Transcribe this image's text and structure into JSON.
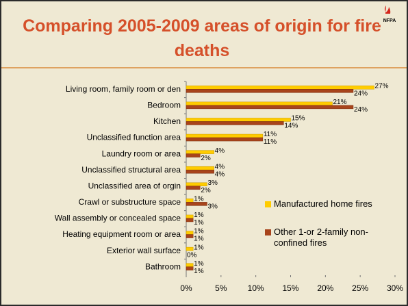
{
  "chart_data": {
    "type": "barh",
    "title": "Comparing 2005-2009 areas of origin for fire deaths",
    "logo": "NFPA",
    "categories": [
      "Living room, family room or den",
      "Bedroom",
      "Kitchen",
      "Unclassified function area",
      "Laundry room or area",
      "Unclassified structural area",
      "Unclassified area of orgin",
      "Crawl or substructure space",
      "Wall assembly or concealed space",
      "Heating equipment room or area",
      "Exterior wall surface",
      "Bathroom"
    ],
    "series": [
      {
        "name": "Manufactured home fires",
        "color": "#ffcc00",
        "values": [
          27,
          21,
          15,
          11,
          4,
          4,
          3,
          1,
          1,
          1,
          1,
          1
        ],
        "value_labels": [
          "27%",
          "21%",
          "15%",
          "11%",
          "4%",
          "4%",
          "3%",
          "1%",
          "1%",
          "1%",
          "1%",
          "1%"
        ]
      },
      {
        "name": "Other 1-or 2-family non-confined fires",
        "color": "#a8441b",
        "values": [
          24,
          24,
          14,
          11,
          2,
          4,
          2,
          3,
          1,
          1,
          0,
          1
        ],
        "value_labels": [
          "24%",
          "24%",
          "14%",
          "11%",
          "2%",
          "4%",
          "2%",
          "3%",
          "1%",
          "1%",
          "0%",
          "1%"
        ]
      }
    ],
    "xlim": [
      0,
      30
    ],
    "xticks": [
      {
        "value": 0,
        "label": "0%"
      },
      {
        "value": 5,
        "label": "5%"
      },
      {
        "value": 10,
        "label": "10%"
      },
      {
        "value": 15,
        "label": "15%"
      },
      {
        "value": 20,
        "label": "20%"
      },
      {
        "value": 25,
        "label": "25%"
      },
      {
        "value": 30,
        "label": "30%"
      }
    ],
    "legend": "right"
  }
}
